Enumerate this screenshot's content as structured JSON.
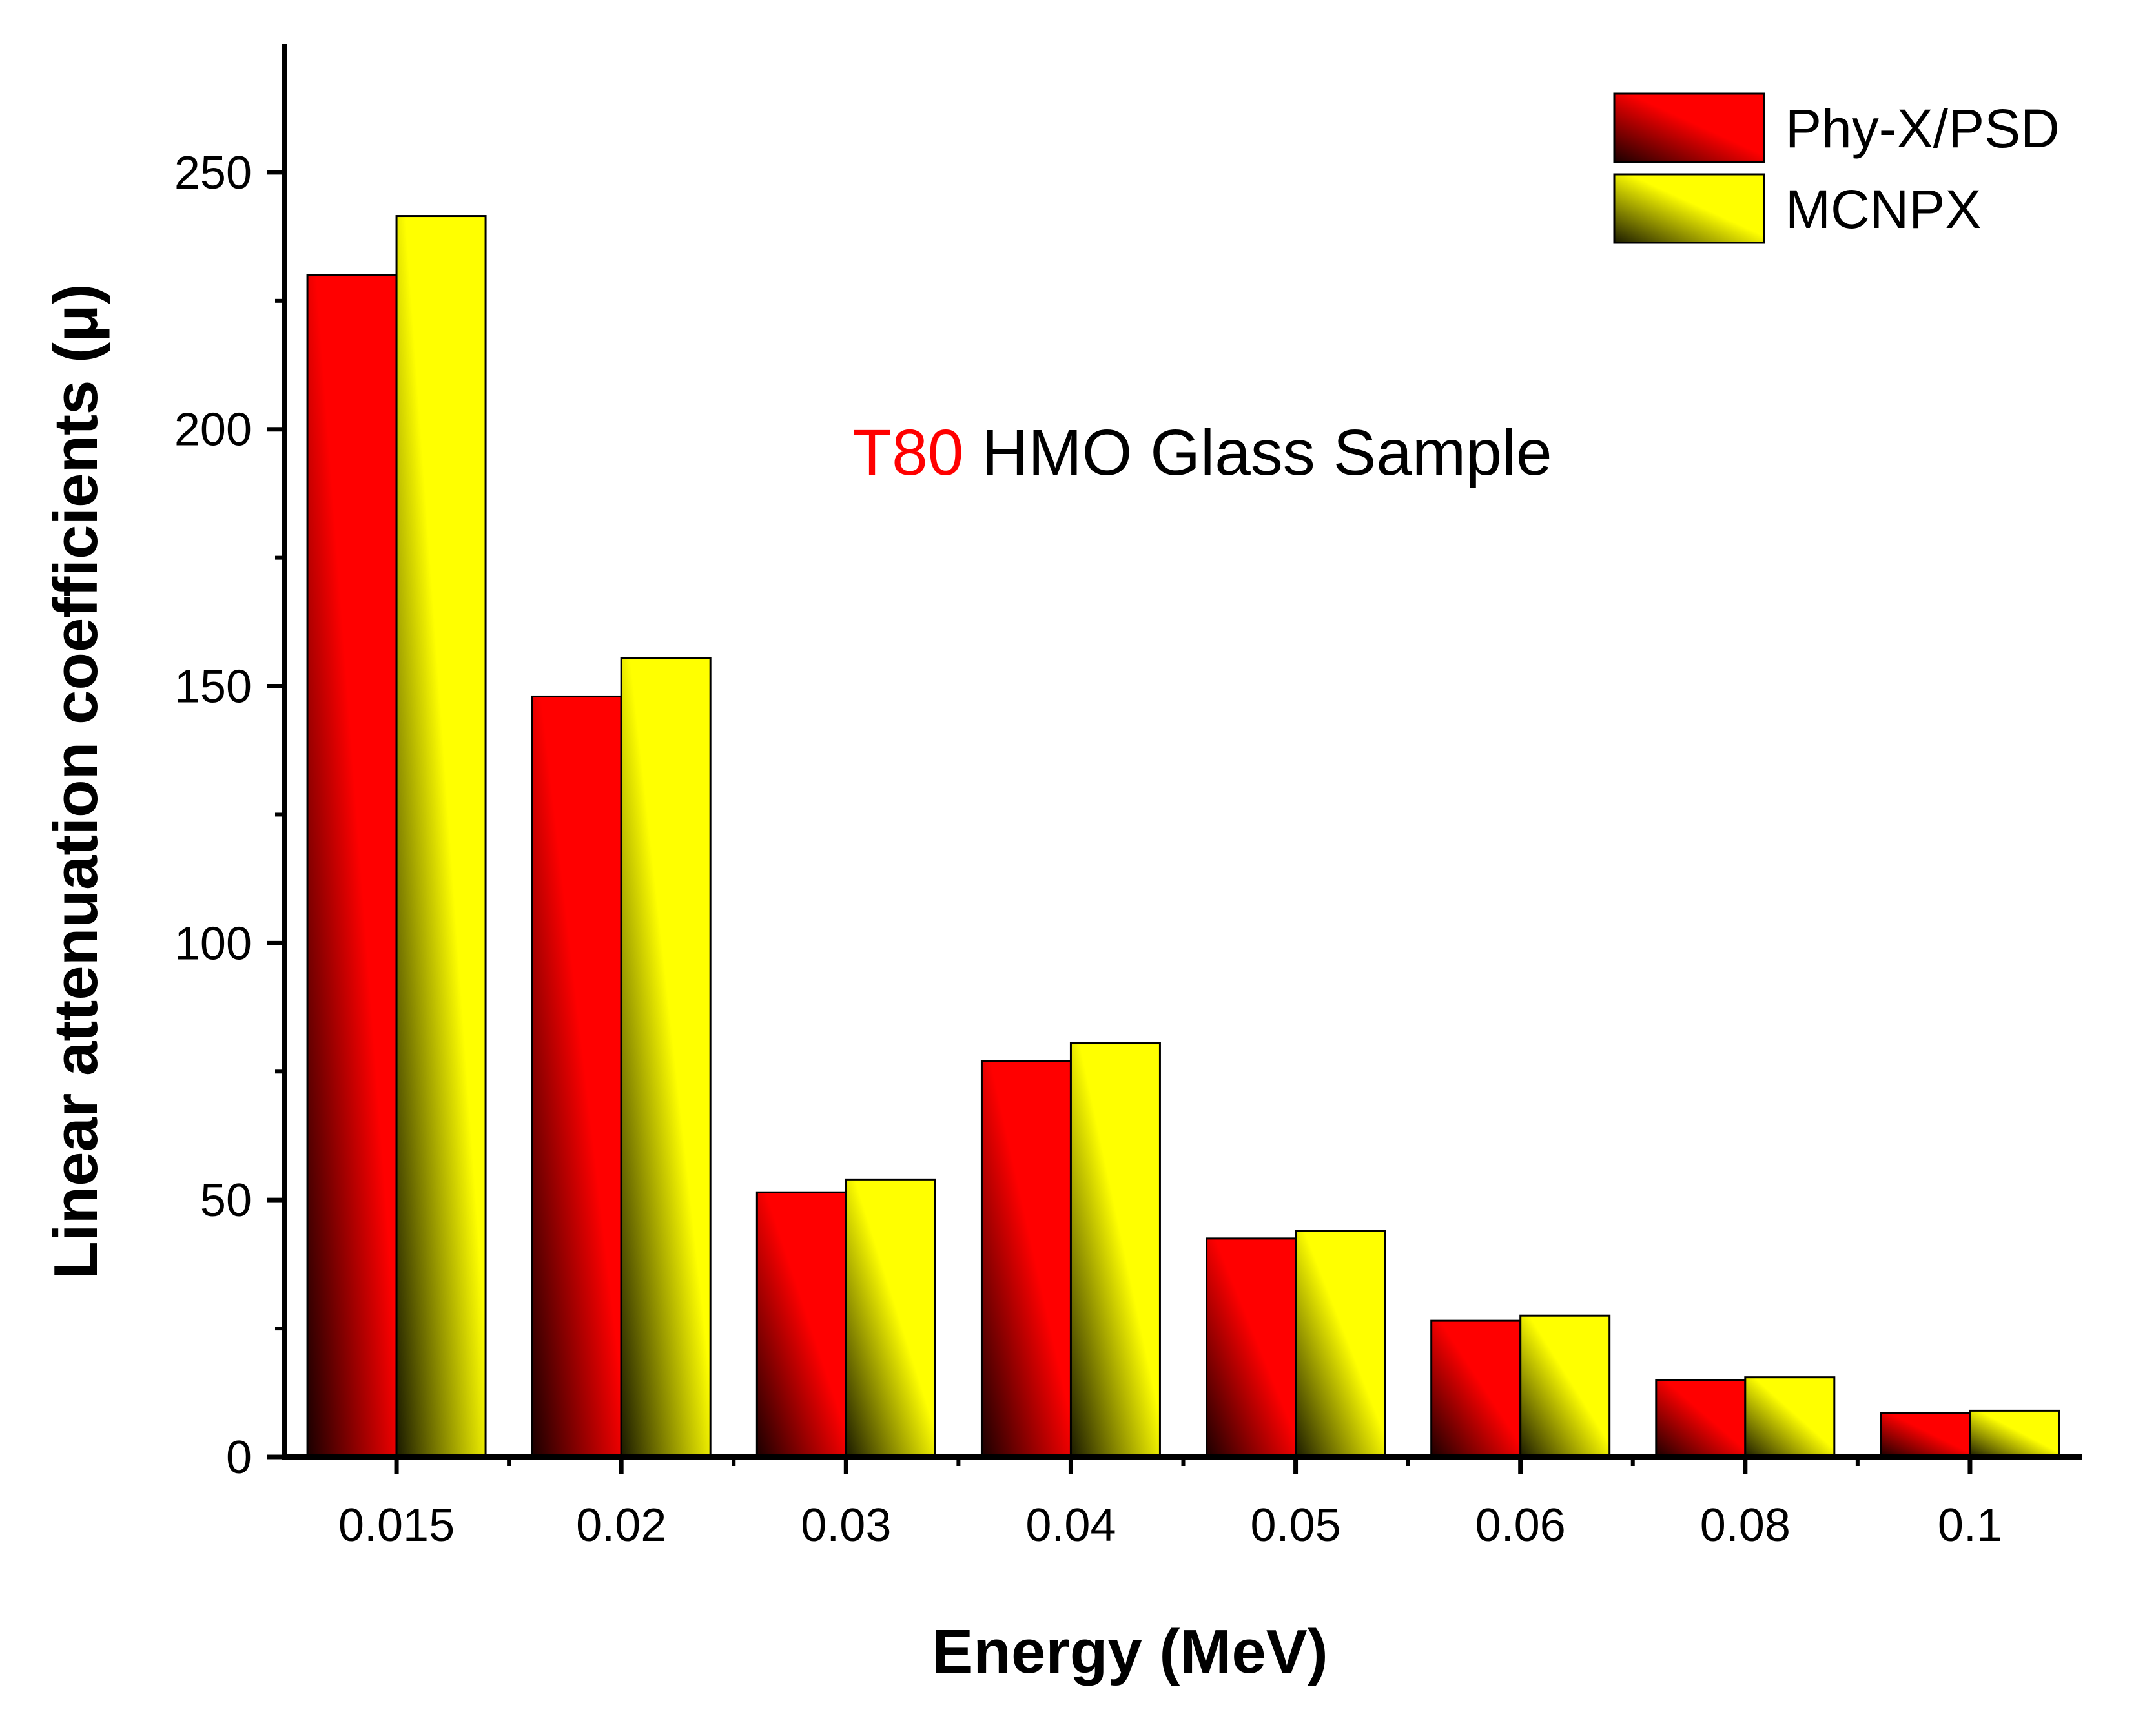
{
  "chart_data": {
    "type": "bar",
    "title": "",
    "annotation": {
      "highlight": "T80",
      "rest": " HMO Glass Sample",
      "highlight_color": "#ff0000"
    },
    "xlabel": "Energy (MeV)",
    "ylabel": "Linear attenuation coefficients (μ)",
    "categories": [
      "0.015",
      "0.02",
      "0.03",
      "0.04",
      "0.05",
      "0.06",
      "0.08",
      "0.1"
    ],
    "series": [
      {
        "name": "Phy-X/PSD",
        "values": [
          230,
          148,
          51.5,
          77,
          42.5,
          26.5,
          15,
          8.5
        ],
        "color_light": "#ff0000",
        "color_dark": "#1a0000"
      },
      {
        "name": "MCNPX",
        "values": [
          241.5,
          155.5,
          54,
          80.5,
          44,
          27.5,
          15.5,
          9
        ],
        "color_light": "#ffff00",
        "color_dark": "#1a1a00"
      }
    ],
    "ylim": [
      0,
      275
    ],
    "yticks": [
      0,
      50,
      100,
      150,
      200,
      250
    ],
    "legend_position": "top-right",
    "grid": false
  }
}
